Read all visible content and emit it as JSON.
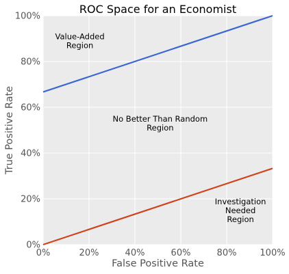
{
  "chart_data": {
    "type": "line",
    "title": "ROC Space for an Economist",
    "xlabel": "False Positive Rate",
    "ylabel": "True Positive Rate",
    "xlim": [
      0,
      100
    ],
    "ylim": [
      0,
      100
    ],
    "xticks": [
      "0%",
      "20%",
      "40%",
      "60%",
      "80%",
      "100%"
    ],
    "yticks": [
      "0%",
      "20%",
      "40%",
      "60%",
      "80%",
      "100%"
    ],
    "grid": true,
    "background": "#ebebeb",
    "series": [
      {
        "color": "#3a66d6",
        "x": [
          0,
          100
        ],
        "y": [
          66.7,
          100
        ]
      },
      {
        "color": "#d2421c",
        "x": [
          0,
          100
        ],
        "y": [
          0,
          33.3
        ]
      }
    ],
    "annotations": [
      {
        "lines": [
          "Value-Added",
          "Region"
        ],
        "x": 16,
        "y": 89
      },
      {
        "lines": [
          "No Better Than Random",
          "Region"
        ],
        "x": 51,
        "y": 53
      },
      {
        "lines": [
          "Investigation",
          "Needed",
          "Region"
        ],
        "x": 86,
        "y": 15
      }
    ]
  }
}
